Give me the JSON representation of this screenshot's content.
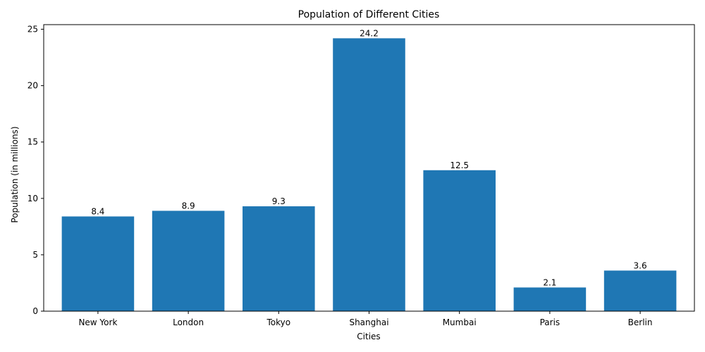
{
  "chart_data": {
    "type": "bar",
    "title": "Population of Different Cities",
    "xlabel": "Cities",
    "ylabel": "Population (in millions)",
    "categories": [
      "New York",
      "London",
      "Tokyo",
      "Shanghai",
      "Mumbai",
      "Paris",
      "Berlin"
    ],
    "values": [
      8.4,
      8.9,
      9.3,
      24.2,
      12.5,
      2.1,
      3.6
    ],
    "data_labels": [
      "8.4",
      "8.9",
      "9.3",
      "24.2",
      "12.5",
      "2.1",
      "3.6"
    ],
    "ylim": [
      0,
      25.41
    ],
    "yticks": [
      0,
      5,
      10,
      15,
      20,
      25
    ],
    "grid": false,
    "legend": "none",
    "colors": {
      "bar": "#1f77b4"
    }
  }
}
